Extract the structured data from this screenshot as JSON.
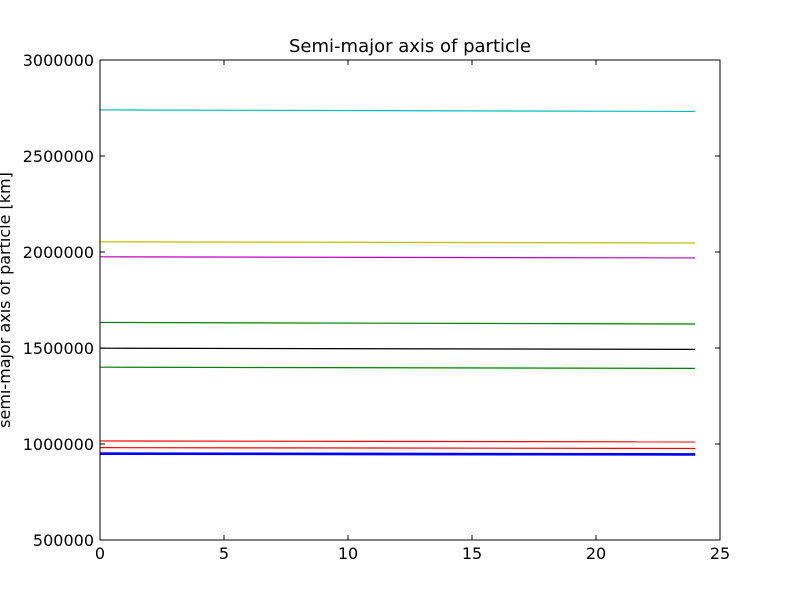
{
  "chart_data": {
    "type": "line",
    "title": "Semi-major axis of particle",
    "xlabel": "",
    "ylabel": "semi-major axis of particle [km]",
    "xlim": [
      0,
      25
    ],
    "ylim": [
      500000,
      3000000
    ],
    "x_ticks": [
      0,
      5,
      10,
      15,
      20,
      25
    ],
    "x_tick_labels": [
      "0",
      "5",
      "10",
      "15",
      "20",
      "25"
    ],
    "y_ticks": [
      500000,
      1000000,
      1500000,
      2000000,
      2500000,
      3000000
    ],
    "y_tick_labels": [
      "500000",
      "1000000",
      "1500000",
      "2000000",
      "2500000",
      "3000000"
    ],
    "grid": false,
    "legend": "none",
    "x": [
      0,
      24
    ],
    "series": [
      {
        "color": "#00bfbf",
        "values": [
          2740000,
          2732000
        ],
        "width": 1.2
      },
      {
        "color": "#bfbf00",
        "values": [
          2053000,
          2047000
        ],
        "width": 1.2
      },
      {
        "color": "#bf00bf",
        "values": [
          1975000,
          1969000
        ],
        "width": 1.2
      },
      {
        "color": "#008000",
        "values": [
          1633000,
          1625000
        ],
        "width": 1.2
      },
      {
        "color": "#000000",
        "values": [
          1499000,
          1493000
        ],
        "width": 1.2
      },
      {
        "color": "#008000",
        "values": [
          1400000,
          1394000
        ],
        "width": 1.2
      },
      {
        "color": "#ff0000",
        "values": [
          1016000,
          1011000
        ],
        "width": 1.2
      },
      {
        "color": "#ff0000",
        "values": [
          981000,
          977000
        ],
        "width": 1.2
      },
      {
        "color": "#0000ff",
        "values": [
          951000,
          947000
        ],
        "width": 2.2
      },
      {
        "color": "#0000ff",
        "values": [
          946000,
          942000
        ],
        "width": 1.2
      }
    ]
  }
}
